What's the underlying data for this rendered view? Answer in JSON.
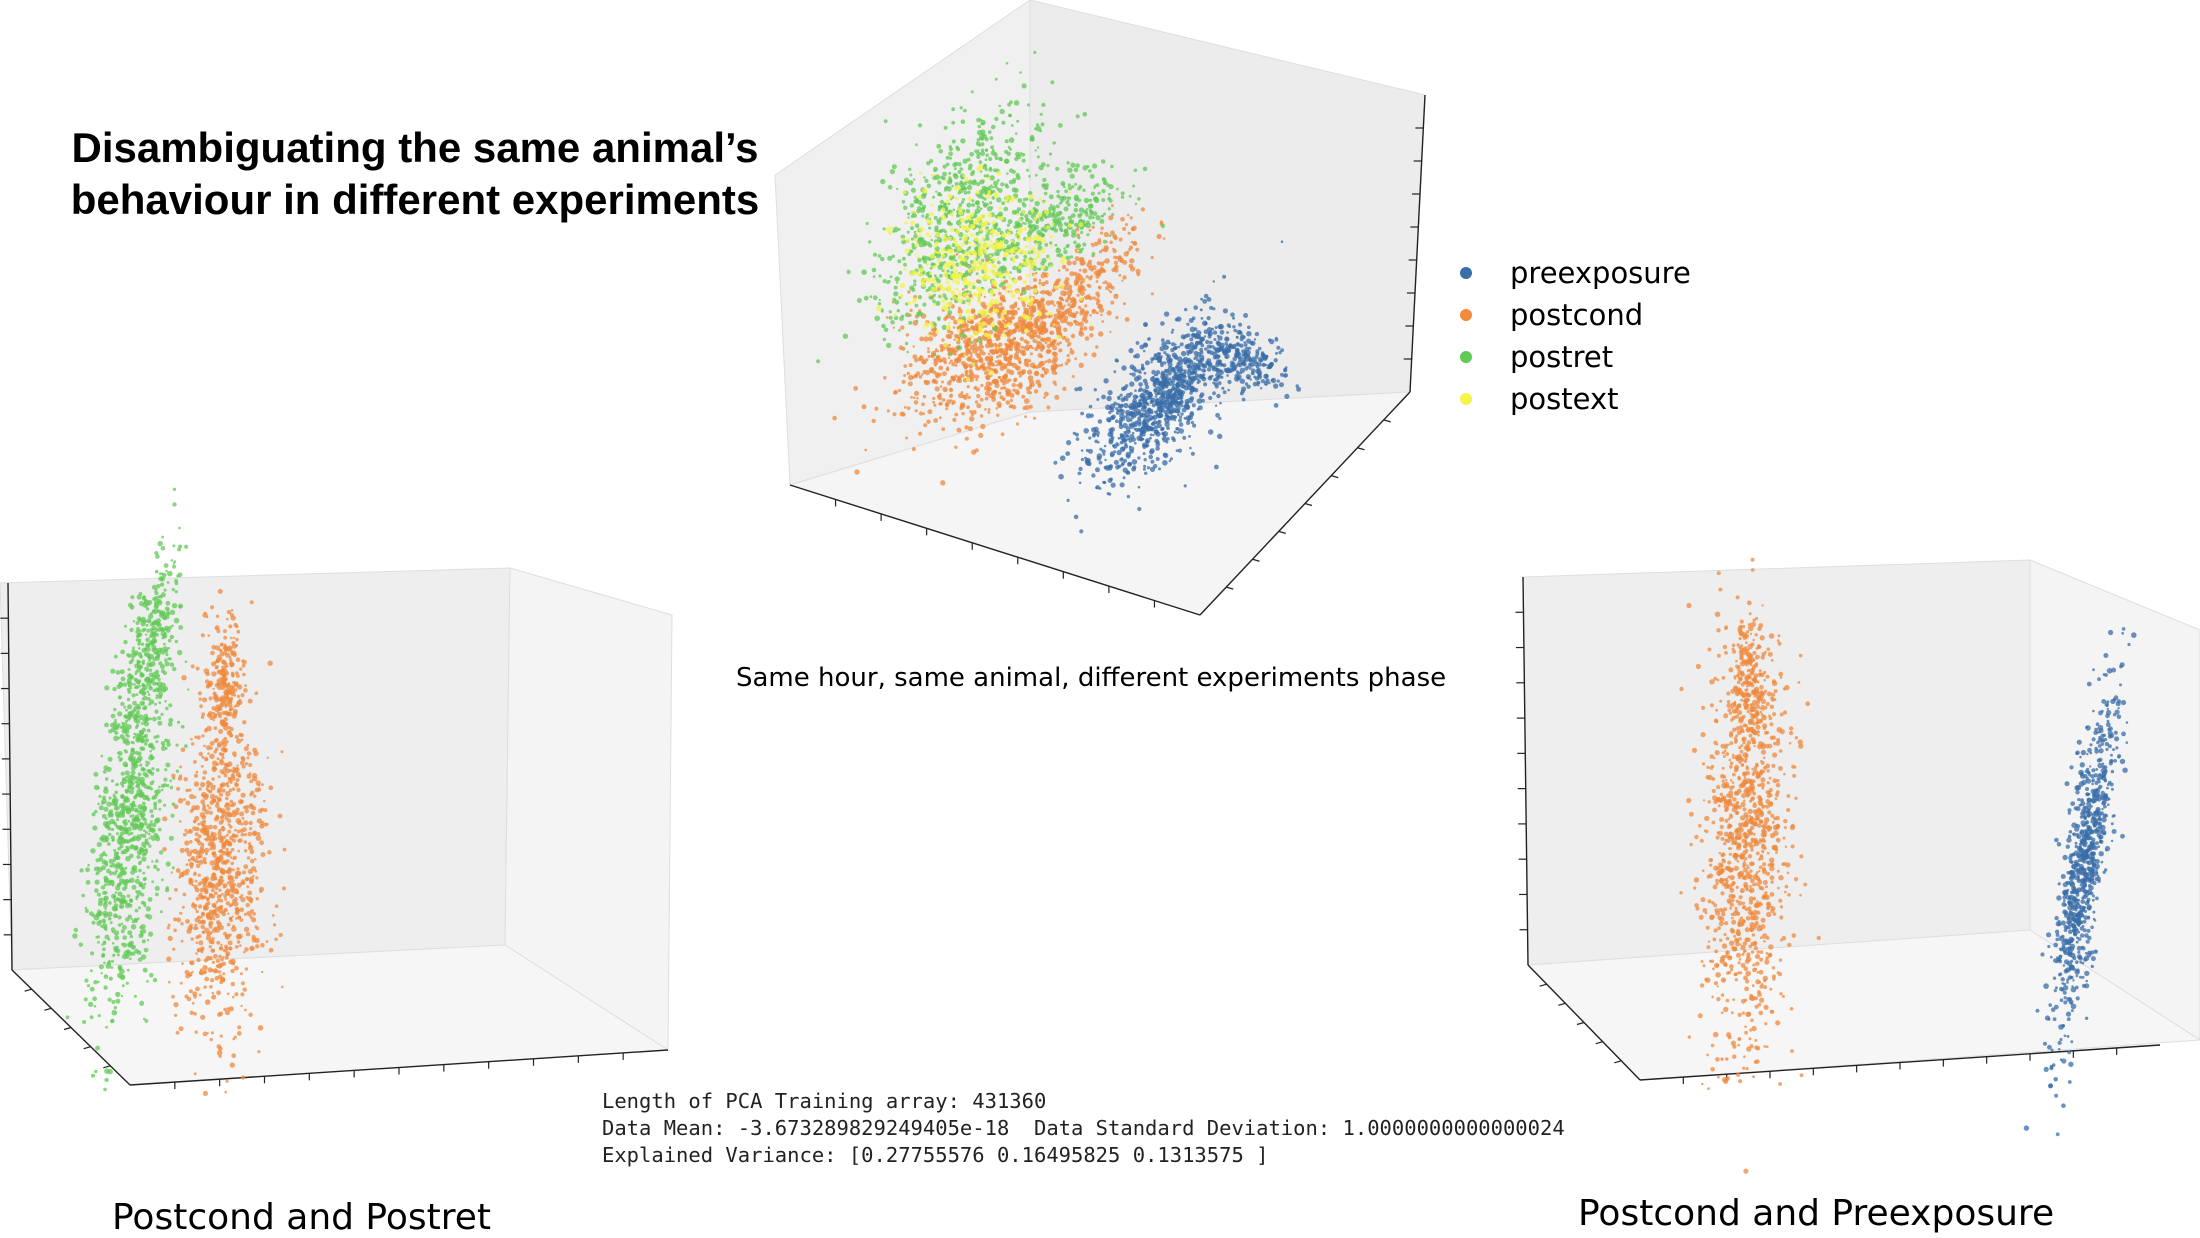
{
  "title": "Disambiguating the same animal’s behaviour in different experiments",
  "subtitle": "Same hour, same animal, different experiments phase",
  "stats": {
    "line1": "Length of PCA Training array: 431360",
    "line2": "Data Mean: -3.673289829249405e-18  Data Standard Deviation: 1.0000000000000024",
    "line3": "Explained Variance: [0.27755576 0.16495825 0.1313575 ]"
  },
  "captions": {
    "left": "Postcond and Postret",
    "right": "Postcond and Preexposure"
  },
  "colors": {
    "preexposure": "#3a6ea8",
    "postcond": "#ef8a3e",
    "postret": "#62c955",
    "postext": "#f4f44a"
  },
  "chart_data": [
    {
      "type": "scatter",
      "projection": "3d",
      "legend_placement": "right",
      "grid": false,
      "series": [
        {
          "name": "preexposure",
          "color": "#3a6ea8",
          "clusters": [
            {
              "x": 0.6,
              "y": 0.2,
              "z": -0.3,
              "spread": [
                0.08,
                0.08,
                0.22
              ]
            }
          ]
        },
        {
          "name": "postcond",
          "color": "#ef8a3e",
          "clusters": [
            {
              "x": -0.2,
              "y": -0.3,
              "z": 0.05,
              "spread": [
                0.14,
                0.12,
                0.2
              ]
            }
          ]
        },
        {
          "name": "postret",
          "color": "#62c955",
          "clusters": [
            {
              "x": -0.35,
              "y": -0.35,
              "z": 0.45,
              "spread": [
                0.12,
                0.12,
                0.25
              ]
            }
          ]
        },
        {
          "name": "postext",
          "color": "#f4f44a",
          "clusters": [
            {
              "x": -0.25,
              "y": -0.3,
              "z": 0.3,
              "spread": [
                0.12,
                0.12,
                0.2
              ]
            }
          ]
        }
      ]
    },
    {
      "type": "scatter",
      "projection": "3d",
      "grid": false,
      "series": [
        {
          "name": "postret",
          "color": "#62c955",
          "clusters": [
            {
              "x": -0.3,
              "y": 0.0,
              "z": 0.0,
              "spread": [
                0.06,
                0.06,
                0.42
              ]
            }
          ]
        },
        {
          "name": "postcond",
          "color": "#ef8a3e",
          "clusters": [
            {
              "x": 0.05,
              "y": 0.0,
              "z": -0.05,
              "spread": [
                0.07,
                0.06,
                0.38
              ]
            }
          ]
        }
      ]
    },
    {
      "type": "scatter",
      "projection": "3d",
      "grid": false,
      "series": [
        {
          "name": "postcond",
          "color": "#ef8a3e",
          "clusters": [
            {
              "x": -0.3,
              "y": 0.0,
              "z": 0.0,
              "spread": [
                0.07,
                0.06,
                0.42
              ]
            }
          ]
        },
        {
          "name": "preexposure",
          "color": "#3a6ea8",
          "clusters": [
            {
              "x": 0.45,
              "y": 0.0,
              "z": 0.0,
              "spread": [
                0.05,
                0.05,
                0.3
              ]
            }
          ]
        }
      ]
    }
  ]
}
